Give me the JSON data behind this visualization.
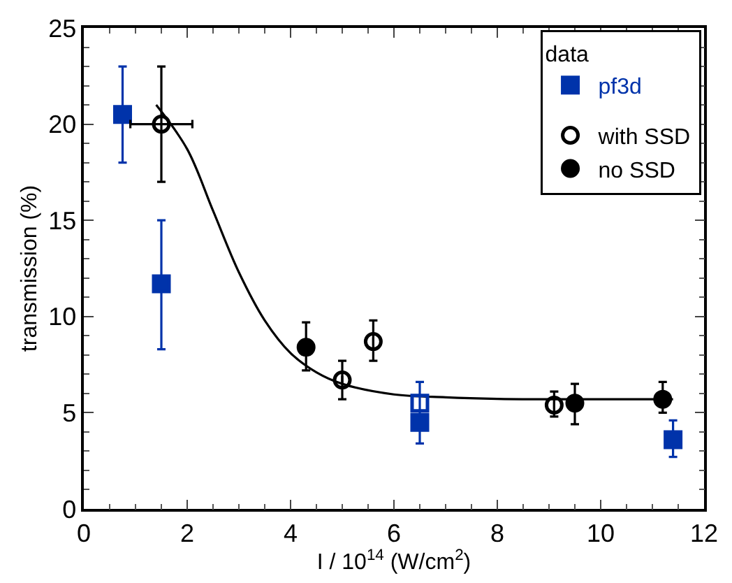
{
  "chart_data": {
    "type": "scatter",
    "xlabel": "I / 10$^{14}$ (W/cm$^{2}$)",
    "ylabel": "transmission (%)",
    "legend_title": "data",
    "xlim": [
      0,
      12
    ],
    "ylim": [
      0,
      25
    ],
    "xticks": [
      0,
      {
        "value": 0.5,
        "label": null
      },
      {
        "value": 1,
        "label": null
      },
      {
        "value": 1.5,
        "label": null
      },
      2,
      {
        "value": 2.5,
        "label": null
      },
      {
        "value": 3,
        "label": null
      },
      {
        "value": 3.5,
        "label": null
      },
      4,
      {
        "value": 4.5,
        "label": null
      },
      {
        "value": 5,
        "label": null
      },
      {
        "value": 5.5,
        "label": null
      },
      6,
      {
        "value": 6.5,
        "label": null
      },
      {
        "value": 7,
        "label": null
      },
      {
        "value": 7.5,
        "label": null
      },
      8,
      {
        "value": 8.5,
        "label": null
      },
      {
        "value": 9,
        "label": null
      },
      {
        "value": 9.5,
        "label": null
      },
      10,
      {
        "value": 10.5,
        "label": null
      },
      {
        "value": 11,
        "label": null
      },
      {
        "value": 11.5,
        "label": null
      },
      12
    ],
    "yticks": [
      0,
      {
        "value": 1,
        "label": null
      },
      {
        "value": 2,
        "label": null
      },
      {
        "value": 3,
        "label": null
      },
      {
        "value": 4,
        "label": null
      },
      5,
      {
        "value": 6,
        "label": null
      },
      {
        "value": 7,
        "label": null
      },
      {
        "value": 8,
        "label": null
      },
      {
        "value": 9,
        "label": null
      },
      10,
      {
        "value": 11,
        "label": null
      },
      {
        "value": 12,
        "label": null
      },
      {
        "value": 13,
        "label": null
      },
      {
        "value": 14,
        "label": null
      },
      15,
      {
        "value": 16,
        "label": null
      },
      {
        "value": 17,
        "label": null
      },
      {
        "value": 18,
        "label": null
      },
      {
        "value": 19,
        "label": null
      },
      20,
      {
        "value": 21,
        "label": null
      },
      {
        "value": 22,
        "label": null
      },
      {
        "value": 23,
        "label": null
      },
      {
        "value": 24,
        "label": null
      },
      25
    ],
    "legend": "top right",
    "series": [
      {
        "type": "line",
        "color": "#000000",
        "marker": "none",
        "line_style": "solid",
        "x": [
          1.4,
          2,
          2.5,
          3,
          3.5,
          4,
          4.5,
          5,
          6,
          7,
          8,
          9,
          10,
          11.4
        ],
        "values": [
          21,
          18.7,
          15.5,
          12.3,
          9.8,
          8.1,
          7.1,
          6.5,
          5.95,
          5.8,
          5.72,
          5.7,
          5.7,
          5.7
        ]
      },
      {
        "name": "pf3d",
        "color": "#0033aa",
        "marker": "square",
        "x": [
          0.75,
          1.5,
          6.5,
          11.4
        ],
        "values": [
          20.5,
          11.7,
          4.5,
          3.6
        ],
        "errors": [
          [
            18,
            23
          ],
          [
            8.3,
            15
          ],
          [
            3.4,
            6.6
          ],
          [
            2.7,
            4.6
          ]
        ]
      },
      {
        "color": "#0033aa",
        "marker": "square-open",
        "x": [
          6.5
        ],
        "values": [
          5.5
        ]
      },
      {
        "name": "with SSD",
        "color": "#000000",
        "marker": "circle-open",
        "x": [
          1.5,
          5.0,
          5.6,
          9.1
        ],
        "values": [
          20,
          6.7,
          8.7,
          5.4
        ],
        "errors": [
          [
            17,
            23
          ],
          [
            5.7,
            7.7
          ],
          [
            7.7,
            9.8
          ],
          [
            4.8,
            6.1
          ]
        ],
        "xerrors": [
          [
            0.9,
            2.1
          ],
          null,
          null,
          null
        ]
      },
      {
        "name": "no SSD",
        "color": "#000000",
        "marker": "circle",
        "x": [
          4.3,
          9.5,
          11.2
        ],
        "values": [
          8.4,
          5.5,
          5.7
        ],
        "errors": [
          [
            7.2,
            9.7
          ],
          [
            4.4,
            6.5
          ],
          [
            5.0,
            6.6
          ]
        ]
      }
    ]
  }
}
